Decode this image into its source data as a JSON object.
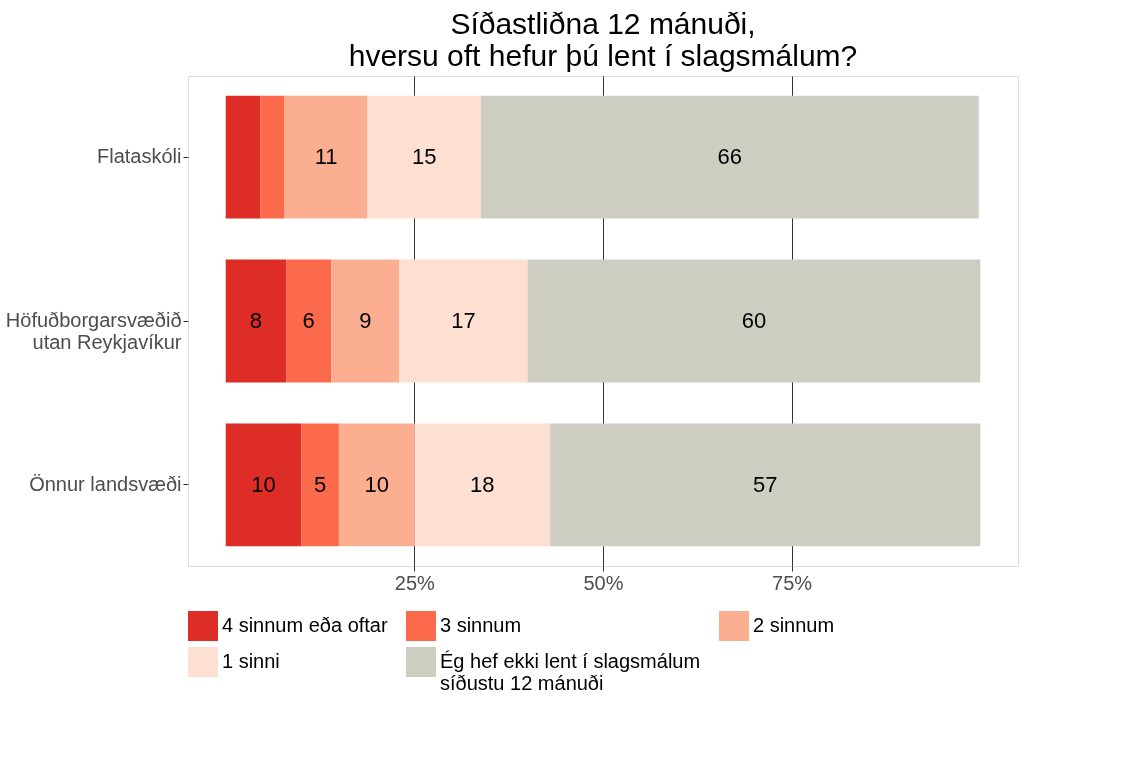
{
  "chart_data": {
    "type": "bar",
    "orientation": "horizontal",
    "stacked": true,
    "title": "Síðastliðna 12 mánuði,\nhversu oft hefur þú lent í slagsmálum?",
    "categories": [
      "Flataskóli",
      "Höfuðborgarsvæðið\nutan Reykjavíkur",
      "Önnur landsvæði"
    ],
    "series": [
      {
        "name": "4 sinnum eða oftar",
        "color": "#de2d26",
        "values": [
          4.6,
          8,
          10
        ],
        "value_labels": [
          null,
          "8",
          "10"
        ]
      },
      {
        "name": "3 sinnum",
        "color": "#fb6a4a",
        "values": [
          3.2,
          6,
          5
        ],
        "value_labels": [
          null,
          "6",
          "5"
        ]
      },
      {
        "name": "2 sinnum",
        "color": "#fcae91",
        "values": [
          11,
          9,
          10
        ],
        "value_labels": [
          "11",
          "9",
          "10"
        ]
      },
      {
        "name": "1 sinni",
        "color": "#fee0d2",
        "values": [
          15,
          17,
          18
        ],
        "value_labels": [
          "15",
          "17",
          "18"
        ]
      },
      {
        "name": "Ég hef ekki lent í slagsmálum\nsíðustu 12 mánuði",
        "color": "#cecdc1",
        "values": [
          66,
          60,
          57
        ],
        "value_labels": [
          "66",
          "60",
          "57"
        ]
      }
    ],
    "xlim": [
      -5,
      105
    ],
    "xticks": [
      {
        "value": 25,
        "label": "25%"
      },
      {
        "value": 50,
        "label": "50%"
      },
      {
        "value": 75,
        "label": "75%"
      }
    ],
    "grid": "x",
    "legend": "bottom"
  }
}
